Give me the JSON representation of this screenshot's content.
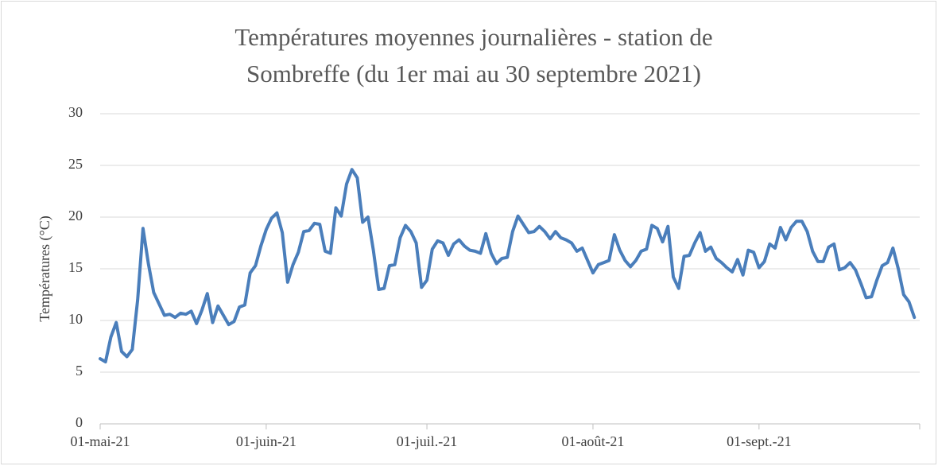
{
  "chart_data": {
    "type": "line",
    "title": [
      "Températures moyennes journalières - station de",
      "Sombreffe (du 1er mai au 30 septembre 2021)"
    ],
    "y_label": "Températures (°C)",
    "categories": [
      "01-mai-21",
      null,
      null,
      null,
      null,
      null,
      null,
      null,
      null,
      null,
      null,
      null,
      null,
      null,
      null,
      null,
      null,
      null,
      null,
      null,
      null,
      null,
      null,
      null,
      null,
      null,
      null,
      null,
      null,
      null,
      null,
      "01-juin-21",
      null,
      null,
      null,
      null,
      null,
      null,
      null,
      null,
      null,
      null,
      null,
      null,
      null,
      null,
      null,
      null,
      null,
      null,
      null,
      null,
      null,
      null,
      null,
      null,
      null,
      null,
      null,
      null,
      null,
      "01-juil.-21",
      null,
      null,
      null,
      null,
      null,
      null,
      null,
      null,
      null,
      null,
      null,
      null,
      null,
      null,
      null,
      null,
      null,
      null,
      null,
      null,
      null,
      null,
      null,
      null,
      null,
      null,
      null,
      null,
      null,
      null,
      "01-août-21",
      null,
      null,
      null,
      null,
      null,
      null,
      null,
      null,
      null,
      null,
      null,
      null,
      null,
      null,
      null,
      null,
      null,
      null,
      null,
      null,
      null,
      null,
      null,
      null,
      null,
      null,
      null,
      null,
      null,
      null,
      "01-sept.-21",
      null,
      null,
      null,
      null,
      null,
      null,
      null,
      null,
      null,
      null,
      null,
      null,
      null,
      null,
      null,
      null,
      null,
      null,
      null,
      null,
      null,
      null,
      null,
      null,
      null,
      null,
      null,
      null,
      null
    ],
    "series": [
      {
        "name": "Températures moyennes",
        "color": "#4a7ebb",
        "values": [
          6.3,
          6.0,
          8.4,
          9.8,
          7.0,
          6.5,
          7.2,
          12.0,
          18.9,
          15.5,
          12.7,
          11.6,
          10.5,
          10.6,
          10.3,
          10.7,
          10.6,
          10.9,
          9.7,
          11.0,
          12.6,
          9.8,
          11.4,
          10.5,
          9.6,
          9.9,
          11.3,
          11.5,
          14.6,
          15.3,
          17.2,
          18.8,
          19.9,
          20.4,
          18.5,
          13.7,
          15.4,
          16.6,
          18.6,
          18.7,
          19.4,
          19.3,
          16.7,
          16.5,
          20.9,
          20.1,
          23.2,
          24.6,
          23.8,
          19.5,
          20.0,
          16.8,
          13.0,
          13.1,
          15.3,
          15.4,
          18.0,
          19.2,
          18.6,
          17.5,
          13.2,
          13.9,
          16.9,
          17.7,
          17.5,
          16.3,
          17.4,
          17.8,
          17.2,
          16.8,
          16.7,
          16.5,
          18.4,
          16.5,
          15.5,
          16.0,
          16.1,
          18.6,
          20.1,
          19.3,
          18.5,
          18.6,
          19.1,
          18.6,
          17.9,
          18.6,
          18.0,
          17.8,
          17.5,
          16.7,
          17.0,
          15.8,
          14.6,
          15.4,
          15.6,
          15.8,
          18.3,
          16.8,
          15.8,
          15.2,
          15.8,
          16.7,
          16.9,
          19.2,
          18.9,
          17.6,
          19.1,
          14.2,
          13.1,
          16.2,
          16.3,
          17.5,
          18.5,
          16.7,
          17.1,
          16.0,
          15.6,
          15.1,
          14.7,
          15.9,
          14.4,
          16.8,
          16.6,
          15.1,
          15.7,
          17.4,
          17.0,
          19.0,
          17.8,
          19.0,
          19.6,
          19.6,
          18.6,
          16.7,
          15.7,
          15.7,
          17.1,
          17.4,
          14.9,
          15.1,
          15.6,
          14.9,
          13.6,
          12.2,
          12.3,
          13.9,
          15.3,
          15.6,
          17.0,
          15.0,
          12.5,
          11.8,
          10.3
        ]
      }
    ],
    "ylim": [
      0,
      30
    ],
    "yticks": [
      0,
      5,
      10,
      15,
      20,
      25,
      30
    ],
    "grid": true
  }
}
